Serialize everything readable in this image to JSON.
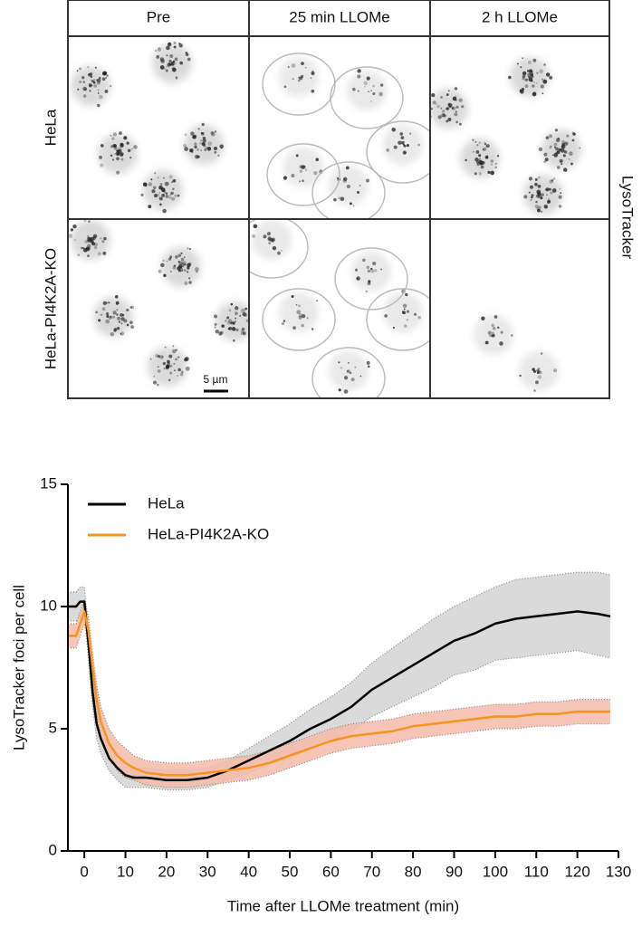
{
  "figure": {
    "columns": [
      "Pre",
      "25 min LLOMe",
      "2 h LLOMe"
    ],
    "rows": [
      "HeLa",
      "HeLa-PI4K2A-KO"
    ],
    "channel_label": "LysoTracker",
    "scale_bar": "5 µm"
  },
  "chart_data": {
    "type": "line",
    "x_label": "Time after LLOMe treatment (min)",
    "y_label": "LysoTracker foci per cell",
    "x": [
      -4,
      -2,
      -1,
      0,
      1,
      2,
      3,
      4,
      6,
      8,
      10,
      12,
      15,
      20,
      25,
      30,
      35,
      40,
      45,
      50,
      55,
      60,
      65,
      70,
      75,
      80,
      85,
      90,
      95,
      100,
      105,
      110,
      115,
      120,
      125,
      128
    ],
    "xlim": [
      -4,
      130
    ],
    "xticks": [
      0,
      10,
      20,
      30,
      40,
      50,
      60,
      70,
      80,
      90,
      100,
      110,
      120,
      130
    ],
    "ylim": [
      0,
      15
    ],
    "yticks": [
      0,
      5,
      10,
      15
    ],
    "legend": "top-left",
    "series": [
      {
        "name": "HeLa",
        "color": "#000000",
        "band_color": "#d3d3d3",
        "values": [
          10.0,
          10.0,
          10.2,
          10.2,
          8.5,
          6.5,
          5.2,
          4.6,
          3.8,
          3.4,
          3.1,
          3.0,
          3.0,
          2.9,
          2.9,
          3.0,
          3.3,
          3.7,
          4.1,
          4.5,
          5.0,
          5.4,
          5.9,
          6.6,
          7.1,
          7.6,
          8.1,
          8.6,
          8.9,
          9.3,
          9.5,
          9.6,
          9.7,
          9.8,
          9.7,
          9.6
        ],
        "errors": [
          0.6,
          0.6,
          0.6,
          0.6,
          0.6,
          0.6,
          0.6,
          0.6,
          0.5,
          0.5,
          0.5,
          0.4,
          0.4,
          0.4,
          0.4,
          0.4,
          0.4,
          0.5,
          0.6,
          0.7,
          0.8,
          0.9,
          1.0,
          1.1,
          1.2,
          1.3,
          1.4,
          1.4,
          1.5,
          1.5,
          1.6,
          1.6,
          1.6,
          1.6,
          1.7,
          1.7
        ]
      },
      {
        "name": "HeLa-PI4K2A-KO",
        "color": "#f7941d",
        "band_color": "#f6bba8",
        "values": [
          8.8,
          8.8,
          9.3,
          9.8,
          9.0,
          7.5,
          6.2,
          5.3,
          4.4,
          3.9,
          3.6,
          3.4,
          3.2,
          3.1,
          3.1,
          3.2,
          3.3,
          3.4,
          3.6,
          3.9,
          4.2,
          4.5,
          4.7,
          4.8,
          4.9,
          5.1,
          5.2,
          5.3,
          5.4,
          5.5,
          5.5,
          5.6,
          5.6,
          5.7,
          5.7,
          5.7
        ],
        "errors": [
          0.5,
          0.5,
          0.5,
          0.5,
          0.6,
          0.6,
          0.6,
          0.6,
          0.6,
          0.6,
          0.6,
          0.5,
          0.5,
          0.5,
          0.5,
          0.5,
          0.5,
          0.5,
          0.5,
          0.5,
          0.5,
          0.5,
          0.5,
          0.5,
          0.5,
          0.5,
          0.5,
          0.5,
          0.5,
          0.5,
          0.5,
          0.5,
          0.5,
          0.5,
          0.5,
          0.5
        ]
      }
    ]
  }
}
